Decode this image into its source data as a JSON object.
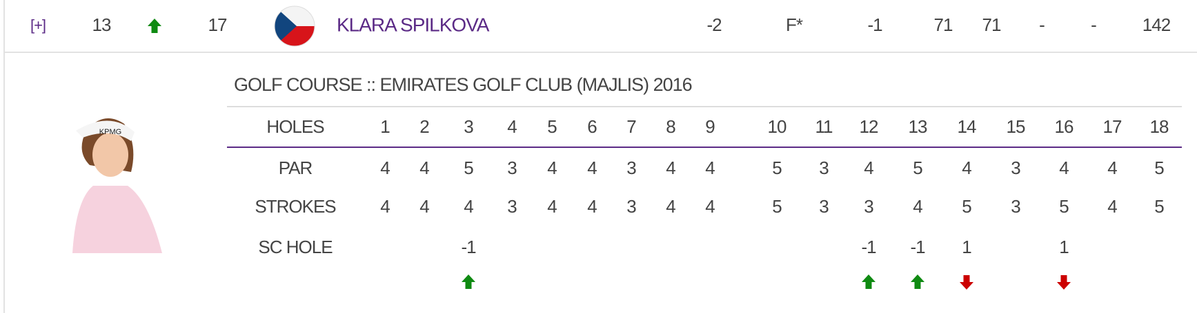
{
  "player": {
    "expand": "[+]",
    "position": 13,
    "movement": "up",
    "previous": 17,
    "name": "KLARA SPILKOVA",
    "to_par": -2,
    "thru": "F*",
    "today": -1,
    "rounds": [
      71,
      71,
      "-",
      "-"
    ],
    "total": 142
  },
  "scorecard": {
    "title": "GOLF COURSE :: EMIRATES GOLF CLUB (MAJLIS) 2016",
    "holes_label": "HOLES",
    "holes": [
      1,
      2,
      3,
      4,
      5,
      6,
      7,
      8,
      9,
      10,
      11,
      12,
      13,
      14,
      15,
      16,
      17,
      18
    ],
    "par_label": "PAR",
    "par": [
      4,
      4,
      5,
      3,
      4,
      4,
      3,
      4,
      4,
      5,
      3,
      4,
      5,
      4,
      3,
      4,
      4,
      5
    ],
    "strokes_label": "STROKES",
    "strokes": [
      4,
      4,
      4,
      3,
      4,
      4,
      3,
      4,
      4,
      5,
      3,
      3,
      4,
      5,
      3,
      5,
      4,
      5
    ],
    "sc_hole_label": "SC HOLE",
    "sc_hole": [
      null,
      null,
      -1,
      null,
      null,
      null,
      null,
      null,
      null,
      null,
      null,
      -1,
      -1,
      1,
      null,
      1,
      null,
      null
    ]
  }
}
